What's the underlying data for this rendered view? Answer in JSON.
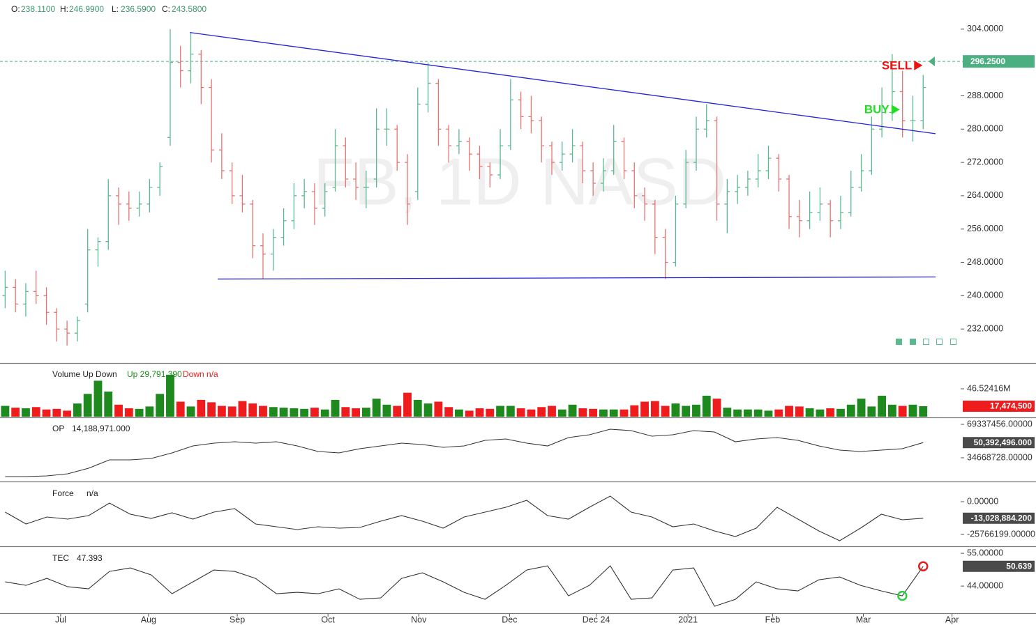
{
  "chart_data": [
    {
      "type": "ohlc",
      "title": "FB, 1D NASD",
      "header": [
        {
          "key": "O:",
          "value": "238.1100"
        },
        {
          "key": "H:",
          "value": "246.9900"
        },
        {
          "key": "L:",
          "value": "236.5900"
        },
        {
          "key": "C:",
          "value": "243.5800"
        }
      ],
      "xlim": [
        -0.5,
        92.5
      ],
      "xticks": [
        {
          "value": 5.38,
          "label": "Jul"
        },
        {
          "value": 13.9,
          "label": "Aug"
        },
        {
          "value": 22.5,
          "label": "Sep"
        },
        {
          "value": 31.3,
          "label": "Oct"
        },
        {
          "value": 40.1,
          "label": "Nov"
        },
        {
          "value": 48.9,
          "label": "Dec"
        },
        {
          "value": 57.3,
          "label": "Dec 24"
        },
        {
          "value": 66.2,
          "label": "2021"
        },
        {
          "value": 74.4,
          "label": "Feb"
        },
        {
          "value": 83.2,
          "label": "Mar"
        },
        {
          "value": 91.8,
          "label": "Apr"
        }
      ],
      "ylim": [
        224,
        311
      ],
      "yticks": [
        {
          "value": 304,
          "label": "304.0000"
        },
        {
          "value": 288,
          "label": "288.0000"
        },
        {
          "value": 280,
          "label": "280.0000"
        },
        {
          "value": 272,
          "label": "272.0000"
        },
        {
          "value": 264,
          "label": "264.0000"
        },
        {
          "value": 256,
          "label": "256.0000"
        },
        {
          "value": 248,
          "label": "248.0000"
        },
        {
          "value": 240,
          "label": "240.0000"
        },
        {
          "value": 232,
          "label": "232.0000"
        }
      ],
      "up_color": "#5bb990",
      "down_color": "#e8736f",
      "bars": [
        [
          240,
          246,
          237,
          242
        ],
        [
          242,
          244,
          236,
          238
        ],
        [
          238,
          243,
          235,
          241
        ],
        [
          241,
          246,
          238,
          240
        ],
        [
          240,
          242,
          233,
          236
        ],
        [
          236,
          237,
          229,
          232
        ],
        [
          232,
          234,
          228,
          231
        ],
        [
          231,
          235,
          229,
          234
        ],
        [
          238,
          256,
          236,
          251
        ],
        [
          251,
          254,
          247,
          253
        ],
        [
          253,
          268,
          251,
          264
        ],
        [
          264,
          266,
          257,
          262
        ],
        [
          262,
          265,
          258,
          261
        ],
        [
          261,
          265,
          259,
          262
        ],
        [
          262,
          268,
          260,
          266
        ],
        [
          266,
          272,
          264,
          271
        ],
        [
          278,
          304,
          276,
          296
        ],
        [
          296,
          300,
          290,
          294
        ],
        [
          294,
          303,
          291,
          298
        ],
        [
          298,
          299,
          286,
          290
        ],
        [
          290,
          292,
          272,
          275
        ],
        [
          275,
          279,
          268,
          270
        ],
        [
          270,
          272,
          262,
          264
        ],
        [
          264,
          269,
          260,
          262
        ],
        [
          262,
          263,
          249,
          252
        ],
        [
          252,
          255,
          244,
          250
        ],
        [
          250,
          256,
          246,
          254
        ],
        [
          254,
          261,
          252,
          258
        ],
        [
          258,
          267,
          256,
          264
        ],
        [
          264,
          268,
          261,
          265
        ],
        [
          265,
          267,
          257,
          261
        ],
        [
          261,
          267,
          259,
          265
        ],
        [
          266,
          280,
          265,
          276
        ],
        [
          276,
          278,
          266,
          268
        ],
        [
          268,
          272,
          263,
          266
        ],
        [
          266,
          270,
          261,
          266
        ],
        [
          268,
          285,
          266,
          280
        ],
        [
          280,
          285,
          276,
          280
        ],
        [
          280,
          281,
          270,
          272
        ],
        [
          272,
          274,
          257,
          262
        ],
        [
          265,
          290,
          263,
          286
        ],
        [
          286,
          296,
          284,
          291
        ],
        [
          291,
          292,
          276,
          280
        ],
        [
          280,
          281,
          272,
          276
        ],
        [
          276,
          280,
          274,
          277
        ],
        [
          277,
          278,
          270,
          274
        ],
        [
          274,
          276,
          268,
          271
        ],
        [
          271,
          272,
          266,
          269
        ],
        [
          269,
          280,
          268,
          276
        ],
        [
          276,
          292,
          275,
          287
        ],
        [
          287,
          289,
          280,
          283
        ],
        [
          283,
          288,
          279,
          282
        ],
        [
          282,
          283,
          272,
          276
        ],
        [
          276,
          277,
          269,
          272
        ],
        [
          272,
          277,
          270,
          274
        ],
        [
          274,
          280,
          272,
          276
        ],
        [
          276,
          277,
          267,
          270
        ],
        [
          270,
          272,
          264,
          267
        ],
        [
          267,
          273,
          265,
          270
        ],
        [
          270,
          281,
          269,
          277
        ],
        [
          277,
          278,
          268,
          270
        ],
        [
          270,
          272,
          261,
          264
        ],
        [
          264,
          266,
          258,
          262
        ],
        [
          262,
          263,
          250,
          254
        ],
        [
          254,
          256,
          244,
          248
        ],
        [
          248,
          264,
          247,
          262
        ],
        [
          262,
          275,
          261,
          272
        ],
        [
          272,
          283,
          270,
          280
        ],
        [
          280,
          286,
          278,
          282
        ],
        [
          282,
          283,
          258,
          262
        ],
        [
          262,
          268,
          255,
          265
        ],
        [
          265,
          269,
          262,
          266
        ],
        [
          266,
          270,
          264,
          268
        ],
        [
          268,
          274,
          266,
          270
        ],
        [
          270,
          276,
          268,
          273
        ],
        [
          273,
          274,
          265,
          268
        ],
        [
          268,
          269,
          256,
          259
        ],
        [
          259,
          263,
          254,
          258
        ],
        [
          258,
          265,
          256,
          260
        ],
        [
          260,
          266,
          258,
          262
        ],
        [
          262,
          263,
          254,
          258
        ],
        [
          258,
          264,
          256,
          260
        ],
        [
          260,
          270,
          259,
          266
        ],
        [
          266,
          274,
          265,
          270
        ],
        [
          270,
          283,
          269,
          280
        ],
        [
          280,
          290,
          278,
          284
        ],
        [
          284,
          298,
          282,
          289
        ],
        [
          289,
          294,
          278,
          282
        ],
        [
          282,
          288,
          277,
          282
        ],
        [
          282,
          293,
          280,
          290
        ]
      ],
      "current": {
        "value": 296.25,
        "label": "296.2500",
        "color": "#4caf82"
      },
      "trendlines": [
        {
          "color": "#2323d8",
          "points": [
            [
              17.9,
              303.2
            ],
            [
              90.2,
              278.9
            ]
          ]
        },
        {
          "color": "#2323d8",
          "points": [
            [
              20.6,
              244
            ],
            [
              90.2,
              244.5
            ]
          ]
        }
      ],
      "signals": [
        {
          "text": "BUY",
          "x": 86.6,
          "y": 284.7,
          "color": "#22dd22"
        },
        {
          "text": "SELL",
          "x": 88.8,
          "y": 295.3,
          "color": "#ee1111"
        }
      ]
    },
    {
      "type": "bar",
      "title": "Volume Up Down",
      "up_label": "Up 29,791,390",
      "down_label": "Down n/a",
      "ylim": [
        0,
        88400000
      ],
      "yticks": [
        {
          "value": 46524160,
          "label": "46.52416M"
        }
      ],
      "up_color": "#1e8a1e",
      "down_color": "#ee1c1c",
      "values": [
        18000000,
        15000000,
        14000000,
        16000000,
        12000000,
        13000000,
        10000000,
        22000000,
        38000000,
        60000000,
        42000000,
        20000000,
        14000000,
        13000000,
        17000000,
        38000000,
        70000000,
        25000000,
        17000000,
        28000000,
        24000000,
        18000000,
        17000000,
        26000000,
        22000000,
        18000000,
        16000000,
        15000000,
        14000000,
        13000000,
        15000000,
        12000000,
        28000000,
        16000000,
        14000000,
        15000000,
        30000000,
        20000000,
        18000000,
        40000000,
        28000000,
        22000000,
        25000000,
        16000000,
        12000000,
        10000000,
        14000000,
        13000000,
        18000000,
        18000000,
        14000000,
        12000000,
        16000000,
        18000000,
        12000000,
        20000000,
        14000000,
        13000000,
        12000000,
        12000000,
        12000000,
        19000000,
        25000000,
        26000000,
        18000000,
        22000000,
        18000000,
        20000000,
        35000000,
        30000000,
        15000000,
        12000000,
        12000000,
        12000000,
        10000000,
        12000000,
        18000000,
        17000000,
        14000000,
        12000000,
        14000000,
        13000000,
        20000000,
        30000000,
        17000000,
        35000000,
        20000000,
        18000000,
        20000000,
        17474500
      ],
      "last_label": "17,474,500",
      "last_color": "#ee1c1c"
    },
    {
      "type": "line",
      "title": "OP",
      "status": "14,188,971.000",
      "color": "#333333",
      "ylim": [
        10834000,
        75837000
      ],
      "yticks": [
        {
          "value": 69337456,
          "label": "69337456.00000"
        },
        {
          "value": 34668728,
          "label": "34668728.00000"
        }
      ],
      "values": [
        15170000,
        15170000,
        15890000,
        18060000,
        23830000,
        32500000,
        32500000,
        33950000,
        39720000,
        46950000,
        49840000,
        51280000,
        49840000,
        51280000,
        46950000,
        41170000,
        39720000,
        44060000,
        46950000,
        49840000,
        48390000,
        45500000,
        46950000,
        52730000,
        54170000,
        49840000,
        46950000,
        55610000,
        58500000,
        64280000,
        62840000,
        57060000,
        58500000,
        62840000,
        61390000,
        51280000,
        54170000,
        55610000,
        52730000,
        46950000,
        42610000,
        41170000,
        42610000,
        44060000,
        50392496
      ],
      "last_label": "50,392,496.000",
      "last_color": "#4a4a4a"
    },
    {
      "type": "line",
      "title": "Force",
      "status": "n/a",
      "color": "#333333",
      "ylim": [
        -34537000,
        14802000
      ],
      "yticks": [
        {
          "value": 0,
          "label": "0.00000"
        },
        {
          "value": -25766199,
          "label": "-25766199.00000"
        }
      ],
      "values": [
        -8223000,
        -17543000,
        -12061000,
        -13705000,
        -10964000,
        -1096000,
        -9868000,
        -13157000,
        -8771000,
        -13705000,
        -8223000,
        -5482000,
        -17543000,
        -19736000,
        -21929000,
        -19736000,
        -20832000,
        -20284000,
        -15350000,
        -10964000,
        -15350000,
        -20832000,
        -12061000,
        -8223000,
        -4386000,
        1096000,
        -10964000,
        -13705000,
        -4386000,
        4386000,
        -8223000,
        -12061000,
        -19736000,
        -17543000,
        -23025000,
        -27411000,
        -20832000,
        -4386000,
        -13705000,
        -23025000,
        -30700000,
        -20832000,
        -9868000,
        -14253000,
        -13028884.2
      ],
      "last_label": "-13,028,884.200",
      "last_color": "#4a4a4a"
    },
    {
      "type": "line",
      "title": "TEC",
      "status": "47.393",
      "color": "#333333",
      "ylim": [
        34.9,
        56.9
      ],
      "yticks": [
        {
          "value": 55,
          "label": "55.00000"
        },
        {
          "value": 44,
          "label": "44.00000"
        }
      ],
      "values": [
        45.41,
        44.24,
        46.58,
        43.77,
        43.07,
        48.92,
        50.09,
        47.75,
        41.43,
        45.41,
        49.38,
        48.92,
        46.58,
        41.43,
        41.9,
        41.43,
        43.07,
        39.56,
        40.02,
        46.58,
        48.45,
        45.41,
        41.9,
        39.56,
        44.24,
        49.38,
        50.79,
        40.73,
        44.24,
        50.79,
        39.56,
        40.02,
        49.38,
        50.09,
        37.22,
        39.56,
        45.41,
        43.07,
        42.36,
        46.11,
        47.04,
        44.24,
        42.36,
        40.73,
        50.639
      ],
      "circles": [
        {
          "x": 43,
          "color": "#2ecc40"
        },
        {
          "x": 44,
          "color": "#e21b1b"
        }
      ],
      "last_label": "50.639",
      "last_color": "#4a4a4a"
    }
  ]
}
